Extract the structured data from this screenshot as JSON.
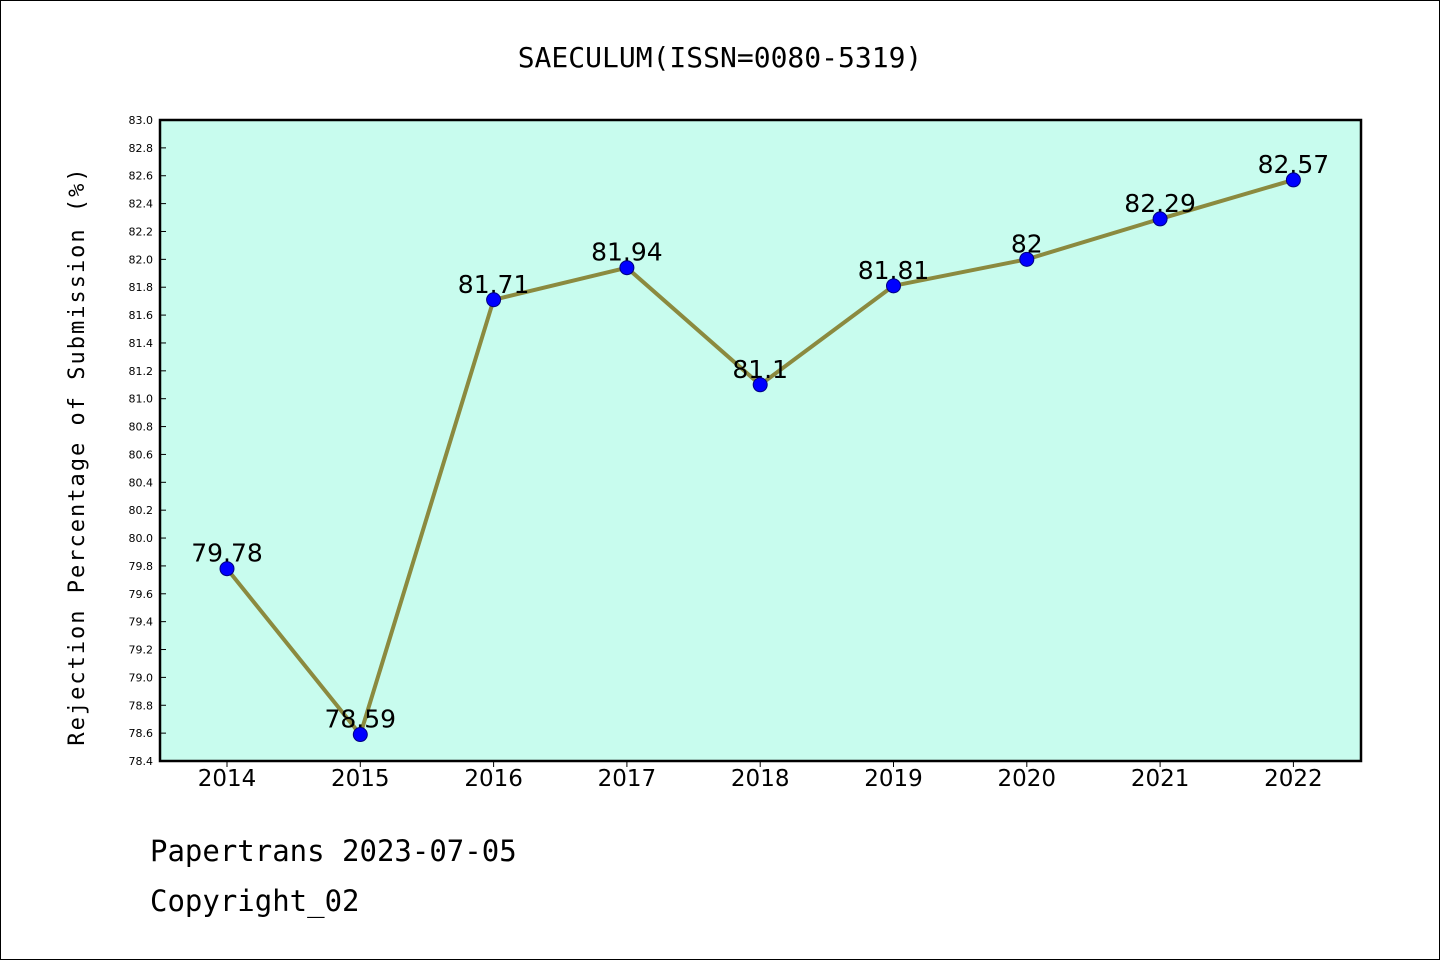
{
  "chart_data": {
    "type": "line",
    "title": "SAECULUM(ISSN=0080-5319)",
    "xlabel": "",
    "ylabel": "Rejection Percentage of Submission (%)",
    "categories": [
      "2014",
      "2015",
      "2016",
      "2017",
      "2018",
      "2019",
      "2020",
      "2021",
      "2022"
    ],
    "series": [
      {
        "values": [
          79.78,
          78.59,
          81.71,
          81.94,
          81.1,
          81.81,
          82,
          82.29,
          82.57
        ],
        "data_labels": [
          "79.78",
          "78.59",
          "81.71",
          "81.94",
          "81.1",
          "81.81",
          "82",
          "82.29",
          "82.57"
        ]
      }
    ],
    "ylim": [
      78.4,
      83.0
    ],
    "yticks": [
      "78.4",
      "78.6",
      "78.8",
      "79.0",
      "79.2",
      "79.4",
      "79.6",
      "79.8",
      "80.0",
      "80.2",
      "80.4",
      "80.6",
      "80.8",
      "81.0",
      "81.2",
      "81.4",
      "81.6",
      "81.8",
      "82.0",
      "82.2",
      "82.4",
      "82.6",
      "82.8",
      "83.0"
    ],
    "grid": false,
    "colors": {
      "plot_background": "#c8fcee",
      "line": "#8b8a3f",
      "marker": "#0000ff",
      "marker_edge": "#000080"
    }
  },
  "footer": {
    "line1": "Papertrans 2023-07-05",
    "line2": "Copyright_02"
  }
}
